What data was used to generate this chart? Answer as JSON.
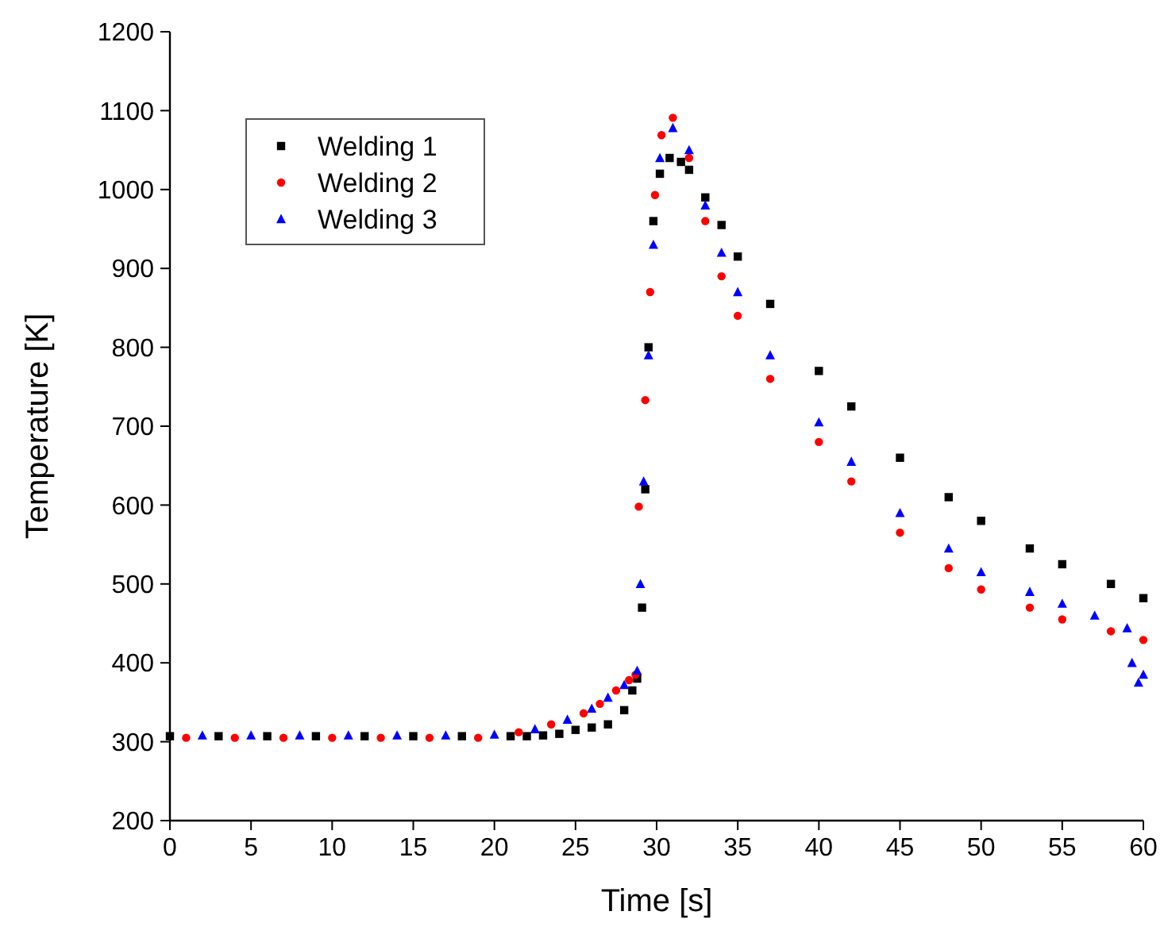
{
  "chart_data": {
    "type": "scatter",
    "xlabel": "Time [s]",
    "ylabel": "Temperature [K]",
    "xlim": [
      0,
      60
    ],
    "ylim": [
      200,
      1200
    ],
    "xticks": [
      0,
      5,
      10,
      15,
      20,
      25,
      30,
      35,
      40,
      45,
      50,
      55,
      60
    ],
    "yticks": [
      200,
      300,
      400,
      500,
      600,
      700,
      800,
      900,
      1000,
      1100,
      1200
    ],
    "grid": false,
    "legend": "top left",
    "series": [
      {
        "name": "Welding 1",
        "color": "#000000",
        "marker": "square",
        "x": [
          0,
          3,
          6,
          9,
          12,
          15,
          18,
          21,
          22,
          23,
          24,
          25,
          26,
          27,
          28,
          28.5,
          28.8,
          29.1,
          29.3,
          29.5,
          29.8,
          30.2,
          30.8,
          31.5,
          32,
          33,
          34,
          35,
          37,
          40,
          42,
          45,
          48,
          50,
          53,
          55,
          58,
          60
        ],
        "values": [
          307,
          307,
          307,
          307,
          307,
          307,
          307,
          307,
          307,
          308,
          310,
          315,
          318,
          322,
          340,
          365,
          380,
          470,
          620,
          800,
          960,
          1020,
          1040,
          1035,
          1025,
          990,
          955,
          915,
          855,
          770,
          725,
          660,
          610,
          580,
          545,
          525,
          500,
          482
        ]
      },
      {
        "name": "Welding 2",
        "color": "#ff0000",
        "marker": "circle",
        "x": [
          1,
          4,
          7,
          10,
          13,
          16,
          19,
          21.5,
          23.5,
          25.5,
          26.5,
          27.5,
          28.3,
          28.7,
          28.9,
          29.3,
          29.6,
          29.9,
          30.3,
          31,
          32,
          33,
          34,
          35,
          37,
          40,
          42,
          45,
          48,
          50,
          53,
          55,
          58,
          60
        ],
        "values": [
          305,
          305,
          305,
          305,
          305,
          305,
          305,
          312,
          322,
          336,
          348,
          365,
          378,
          385,
          598,
          733,
          870,
          993,
          1069,
          1091,
          1040,
          960,
          890,
          840,
          760,
          680,
          630,
          565,
          520,
          493,
          470,
          455,
          440,
          429
        ]
      },
      {
        "name": "Welding 3",
        "color": "#0000ff",
        "marker": "triangle",
        "x": [
          2,
          5,
          8,
          11,
          14,
          17,
          20,
          22.5,
          24.5,
          26,
          27,
          28,
          28.8,
          29,
          29.2,
          29.5,
          29.8,
          30.2,
          31,
          32,
          33,
          34,
          35,
          37,
          40,
          42,
          45,
          48,
          50,
          53,
          55,
          57,
          59,
          59.3,
          59.7,
          60
        ],
        "values": [
          308,
          308,
          308,
          308,
          308,
          308,
          309,
          316,
          328,
          342,
          356,
          372,
          390,
          500,
          630,
          790,
          930,
          1040,
          1078,
          1050,
          980,
          920,
          870,
          790,
          705,
          655,
          590,
          545,
          515,
          490,
          475,
          460,
          444,
          400,
          375,
          385
        ]
      }
    ]
  }
}
